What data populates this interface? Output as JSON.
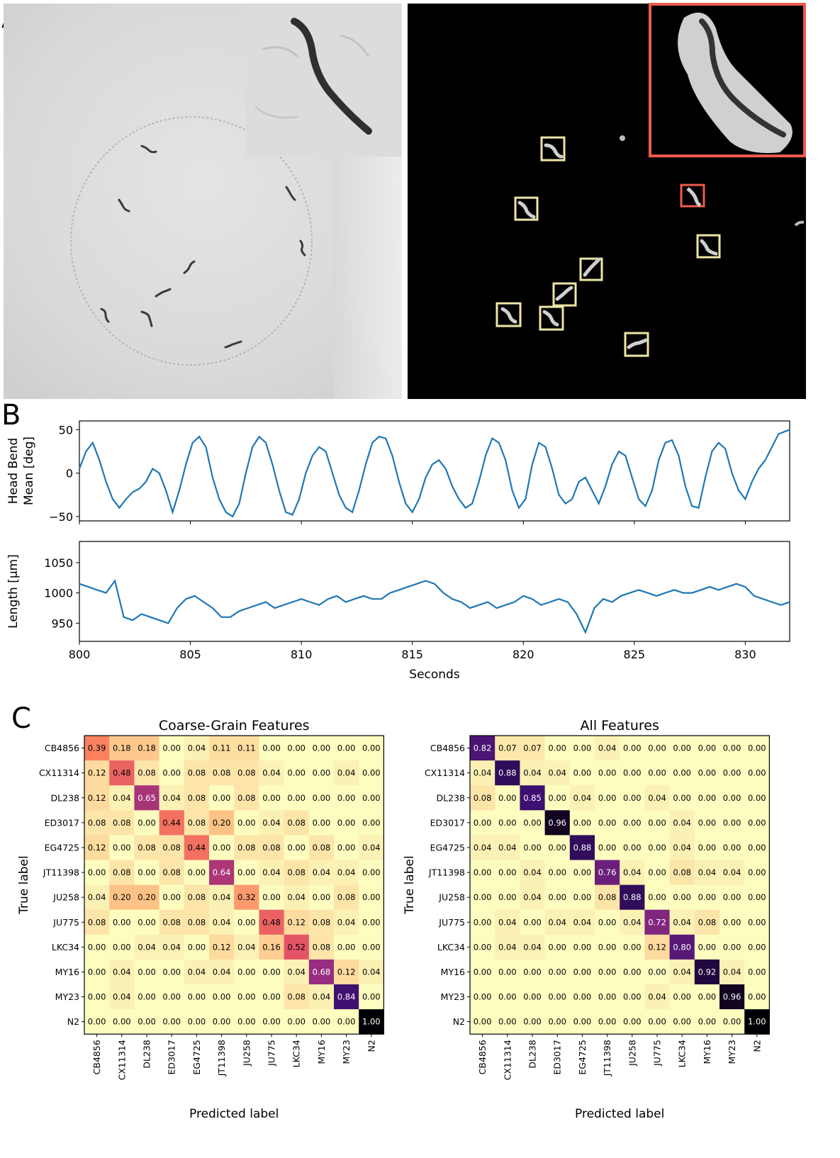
{
  "panels": {
    "a": "A",
    "b": "B",
    "c": "C"
  },
  "colors": {
    "line": "#1f77b4",
    "highlight": "#f05a4a",
    "box": "#eee6a6",
    "frame": "#000000"
  },
  "icons": [
    "microscope-image",
    "segmentation-image"
  ],
  "chart_data": [
    {
      "type": "line",
      "title": "",
      "xlabel": "",
      "ylabel": "Head Bend\nMean [deg]",
      "xlim": [
        800,
        832
      ],
      "ylim": [
        -55,
        60
      ],
      "yticks": [
        50,
        0,
        -50
      ],
      "series": [
        {
          "x": [
            800,
            800.3,
            800.6,
            800.9,
            801.2,
            801.5,
            801.8,
            802.1,
            802.4,
            802.7,
            803,
            803.3,
            803.6,
            803.9,
            804.2,
            804.5,
            804.8,
            805.1,
            805.4,
            805.7,
            806,
            806.3,
            806.6,
            806.9,
            807.2,
            807.5,
            807.8,
            808.1,
            808.4,
            808.7,
            809,
            809.3,
            809.6,
            809.9,
            810.2,
            810.5,
            810.8,
            811.1,
            811.4,
            811.7,
            812,
            812.3,
            812.6,
            812.9,
            813.2,
            813.5,
            813.8,
            814.1,
            814.4,
            814.7,
            815,
            815.3,
            815.6,
            815.9,
            816.2,
            816.5,
            816.8,
            817.1,
            817.4,
            817.7,
            818,
            818.3,
            818.6,
            818.9,
            819.2,
            819.5,
            819.8,
            820.1,
            820.4,
            820.7,
            821,
            821.3,
            821.6,
            821.9,
            822.2,
            822.5,
            822.8,
            823.1,
            823.4,
            823.7,
            824,
            824.3,
            824.6,
            824.9,
            825.2,
            825.5,
            825.8,
            826.1,
            826.4,
            826.7,
            827,
            827.3,
            827.6,
            827.9,
            828.2,
            828.5,
            828.8,
            829.1,
            829.4,
            829.7,
            830,
            830.3,
            830.6,
            830.9,
            831.2,
            831.5,
            832
          ],
          "values": [
            5,
            25,
            35,
            15,
            -10,
            -30,
            -40,
            -30,
            -22,
            -18,
            -10,
            5,
            0,
            -20,
            -45,
            -20,
            10,
            35,
            42,
            30,
            -5,
            -30,
            -45,
            -50,
            -35,
            0,
            30,
            42,
            35,
            10,
            -20,
            -45,
            -48,
            -30,
            0,
            20,
            30,
            25,
            0,
            -25,
            -40,
            -45,
            -20,
            10,
            35,
            42,
            40,
            20,
            -10,
            -35,
            -45,
            -30,
            -5,
            10,
            15,
            5,
            -15,
            -30,
            -40,
            -35,
            -10,
            20,
            40,
            35,
            15,
            -20,
            -40,
            -30,
            10,
            35,
            30,
            5,
            -25,
            -35,
            -30,
            -10,
            -5,
            -20,
            -35,
            -15,
            10,
            25,
            20,
            -5,
            -30,
            -38,
            -20,
            15,
            35,
            38,
            20,
            -15,
            -38,
            -40,
            -5,
            25,
            35,
            28,
            0,
            -20,
            -30,
            -10,
            5,
            15,
            30,
            45,
            50
          ]
        }
      ]
    },
    {
      "type": "line",
      "title": "",
      "xlabel": "Seconds",
      "ylabel": "Length [μm]",
      "xlim": [
        800,
        832
      ],
      "ylim": [
        920,
        1085
      ],
      "xticks": [
        800,
        805,
        810,
        815,
        820,
        825,
        830
      ],
      "yticks": [
        1050,
        1000,
        950
      ],
      "series": [
        {
          "x": [
            800,
            800.4,
            800.8,
            801.2,
            801.6,
            802,
            802.4,
            802.8,
            803.2,
            803.6,
            804,
            804.4,
            804.8,
            805.2,
            805.6,
            806,
            806.4,
            806.8,
            807.2,
            807.6,
            808,
            808.4,
            808.8,
            809.2,
            809.6,
            810,
            810.4,
            810.8,
            811.2,
            811.6,
            812,
            812.4,
            812.8,
            813.2,
            813.6,
            814,
            814.4,
            814.8,
            815.2,
            815.6,
            816,
            816.4,
            816.8,
            817.2,
            817.6,
            818,
            818.4,
            818.8,
            819.2,
            819.6,
            820,
            820.4,
            820.8,
            821.2,
            821.6,
            822,
            822.4,
            822.8,
            823.2,
            823.6,
            824,
            824.4,
            824.8,
            825.2,
            825.6,
            826,
            826.4,
            826.8,
            827.2,
            827.6,
            828,
            828.4,
            828.8,
            829.2,
            829.6,
            830,
            830.4,
            830.8,
            831.2,
            831.6,
            832
          ],
          "values": [
            1015,
            1010,
            1005,
            1000,
            1020,
            960,
            955,
            965,
            960,
            955,
            950,
            975,
            990,
            995,
            985,
            975,
            960,
            960,
            970,
            975,
            980,
            985,
            975,
            980,
            985,
            990,
            985,
            980,
            990,
            995,
            985,
            990,
            995,
            990,
            990,
            1000,
            1005,
            1010,
            1015,
            1020,
            1015,
            1000,
            990,
            985,
            975,
            980,
            985,
            975,
            980,
            985,
            995,
            990,
            980,
            985,
            990,
            985,
            965,
            935,
            975,
            990,
            985,
            995,
            1000,
            1005,
            1000,
            995,
            1000,
            1005,
            1000,
            1000,
            1005,
            1010,
            1005,
            1010,
            1015,
            1010,
            995,
            990,
            985,
            980,
            985
          ]
        }
      ]
    },
    {
      "type": "heatmap",
      "title": "Coarse-Grain Features",
      "xlabel": "Predicted label",
      "ylabel": "True label",
      "labels": [
        "CB4856",
        "CX11314",
        "DL238",
        "ED3017",
        "EG4725",
        "JT11398",
        "JU258",
        "JU775",
        "LKC34",
        "MY16",
        "MY23",
        "N2"
      ],
      "matrix": [
        [
          "0.39",
          "0.18",
          "0.18",
          "0.00",
          "0.04",
          "0.11",
          "0.11",
          "0.00",
          "0.00",
          "0.00",
          "0.00",
          "0.00"
        ],
        [
          "0.12",
          "0.48",
          "0.08",
          "0.00",
          "0.08",
          "0.08",
          "0.08",
          "0.04",
          "0.00",
          "0.00",
          "0.04",
          "0.00"
        ],
        [
          "0.12",
          "0.04",
          "0.65",
          "0.04",
          "0.08",
          "0.00",
          "0.08",
          "0.00",
          "0.00",
          "0.00",
          "0.00",
          "0.00"
        ],
        [
          "0.08",
          "0.08",
          "0.00",
          "0.44",
          "0.08",
          "0.20",
          "0.00",
          "0.04",
          "0.08",
          "0.00",
          "0.00",
          "0.00"
        ],
        [
          "0.12",
          "0.00",
          "0.08",
          "0.08",
          "0.44",
          "0.00",
          "0.08",
          "0.08",
          "0.00",
          "0.08",
          "0.00",
          "0.04"
        ],
        [
          "0.00",
          "0.08",
          "0.00",
          "0.08",
          "0.00",
          "0.64",
          "0.00",
          "0.04",
          "0.08",
          "0.04",
          "0.04",
          "0.00"
        ],
        [
          "0.04",
          "0.20",
          "0.20",
          "0.00",
          "0.08",
          "0.04",
          "0.32",
          "0.00",
          "0.04",
          "0.00",
          "0.08",
          "0.00"
        ],
        [
          "0.08",
          "0.00",
          "0.00",
          "0.08",
          "0.08",
          "0.04",
          "0.00",
          "0.48",
          "0.12",
          "0.08",
          "0.04",
          "0.00"
        ],
        [
          "0.00",
          "0.00",
          "0.04",
          "0.04",
          "0.00",
          "0.12",
          "0.04",
          "0.16",
          "0.52",
          "0.08",
          "0.00",
          "0.00"
        ],
        [
          "0.00",
          "0.04",
          "0.00",
          "0.00",
          "0.04",
          "0.04",
          "0.00",
          "0.00",
          "0.04",
          "0.68",
          "0.12",
          "0.04"
        ],
        [
          "0.00",
          "0.04",
          "0.00",
          "0.00",
          "0.00",
          "0.00",
          "0.00",
          "0.00",
          "0.08",
          "0.04",
          "0.84",
          "0.00"
        ],
        [
          "0.00",
          "0.00",
          "0.00",
          "0.00",
          "0.00",
          "0.00",
          "0.00",
          "0.00",
          "0.00",
          "0.00",
          "0.00",
          "1.00"
        ]
      ]
    },
    {
      "type": "heatmap",
      "title": "All Features",
      "xlabel": "Predicted label",
      "ylabel": "True label",
      "labels": [
        "CB4856",
        "CX11314",
        "DL238",
        "ED3017",
        "EG4725",
        "JT11398",
        "JU258",
        "JU775",
        "LKC34",
        "MY16",
        "MY23",
        "N2"
      ],
      "matrix": [
        [
          "0.82",
          "0.07",
          "0.07",
          "0.00",
          "0.00",
          "0.04",
          "0.00",
          "0.00",
          "0.00",
          "0.00",
          "0.00",
          "0.00"
        ],
        [
          "0.04",
          "0.88",
          "0.04",
          "0.04",
          "0.00",
          "0.00",
          "0.00",
          "0.00",
          "0.00",
          "0.00",
          "0.00",
          "0.00"
        ],
        [
          "0.08",
          "0.00",
          "0.85",
          "0.00",
          "0.04",
          "0.00",
          "0.00",
          "0.04",
          "0.00",
          "0.00",
          "0.00",
          "0.00"
        ],
        [
          "0.00",
          "0.00",
          "0.00",
          "0.96",
          "0.00",
          "0.00",
          "0.00",
          "0.00",
          "0.04",
          "0.00",
          "0.00",
          "0.00"
        ],
        [
          "0.04",
          "0.04",
          "0.00",
          "0.00",
          "0.88",
          "0.00",
          "0.00",
          "0.00",
          "0.04",
          "0.00",
          "0.00",
          "0.00"
        ],
        [
          "0.00",
          "0.00",
          "0.04",
          "0.00",
          "0.00",
          "0.76",
          "0.04",
          "0.00",
          "0.08",
          "0.04",
          "0.04",
          "0.00"
        ],
        [
          "0.00",
          "0.00",
          "0.04",
          "0.00",
          "0.00",
          "0.08",
          "0.88",
          "0.00",
          "0.00",
          "0.00",
          "0.00",
          "0.00"
        ],
        [
          "0.00",
          "0.04",
          "0.00",
          "0.04",
          "0.04",
          "0.00",
          "0.04",
          "0.72",
          "0.04",
          "0.08",
          "0.00",
          "0.00"
        ],
        [
          "0.00",
          "0.04",
          "0.04",
          "0.00",
          "0.00",
          "0.00",
          "0.00",
          "0.12",
          "0.80",
          "0.00",
          "0.00",
          "0.00"
        ],
        [
          "0.00",
          "0.00",
          "0.00",
          "0.00",
          "0.00",
          "0.00",
          "0.00",
          "0.00",
          "0.04",
          "0.92",
          "0.04",
          "0.00"
        ],
        [
          "0.00",
          "0.00",
          "0.00",
          "0.00",
          "0.00",
          "0.00",
          "0.00",
          "0.04",
          "0.00",
          "0.00",
          "0.96",
          "0.00"
        ],
        [
          "0.00",
          "0.00",
          "0.00",
          "0.00",
          "0.00",
          "0.00",
          "0.00",
          "0.00",
          "0.00",
          "0.00",
          "0.00",
          "1.00"
        ]
      ]
    }
  ]
}
